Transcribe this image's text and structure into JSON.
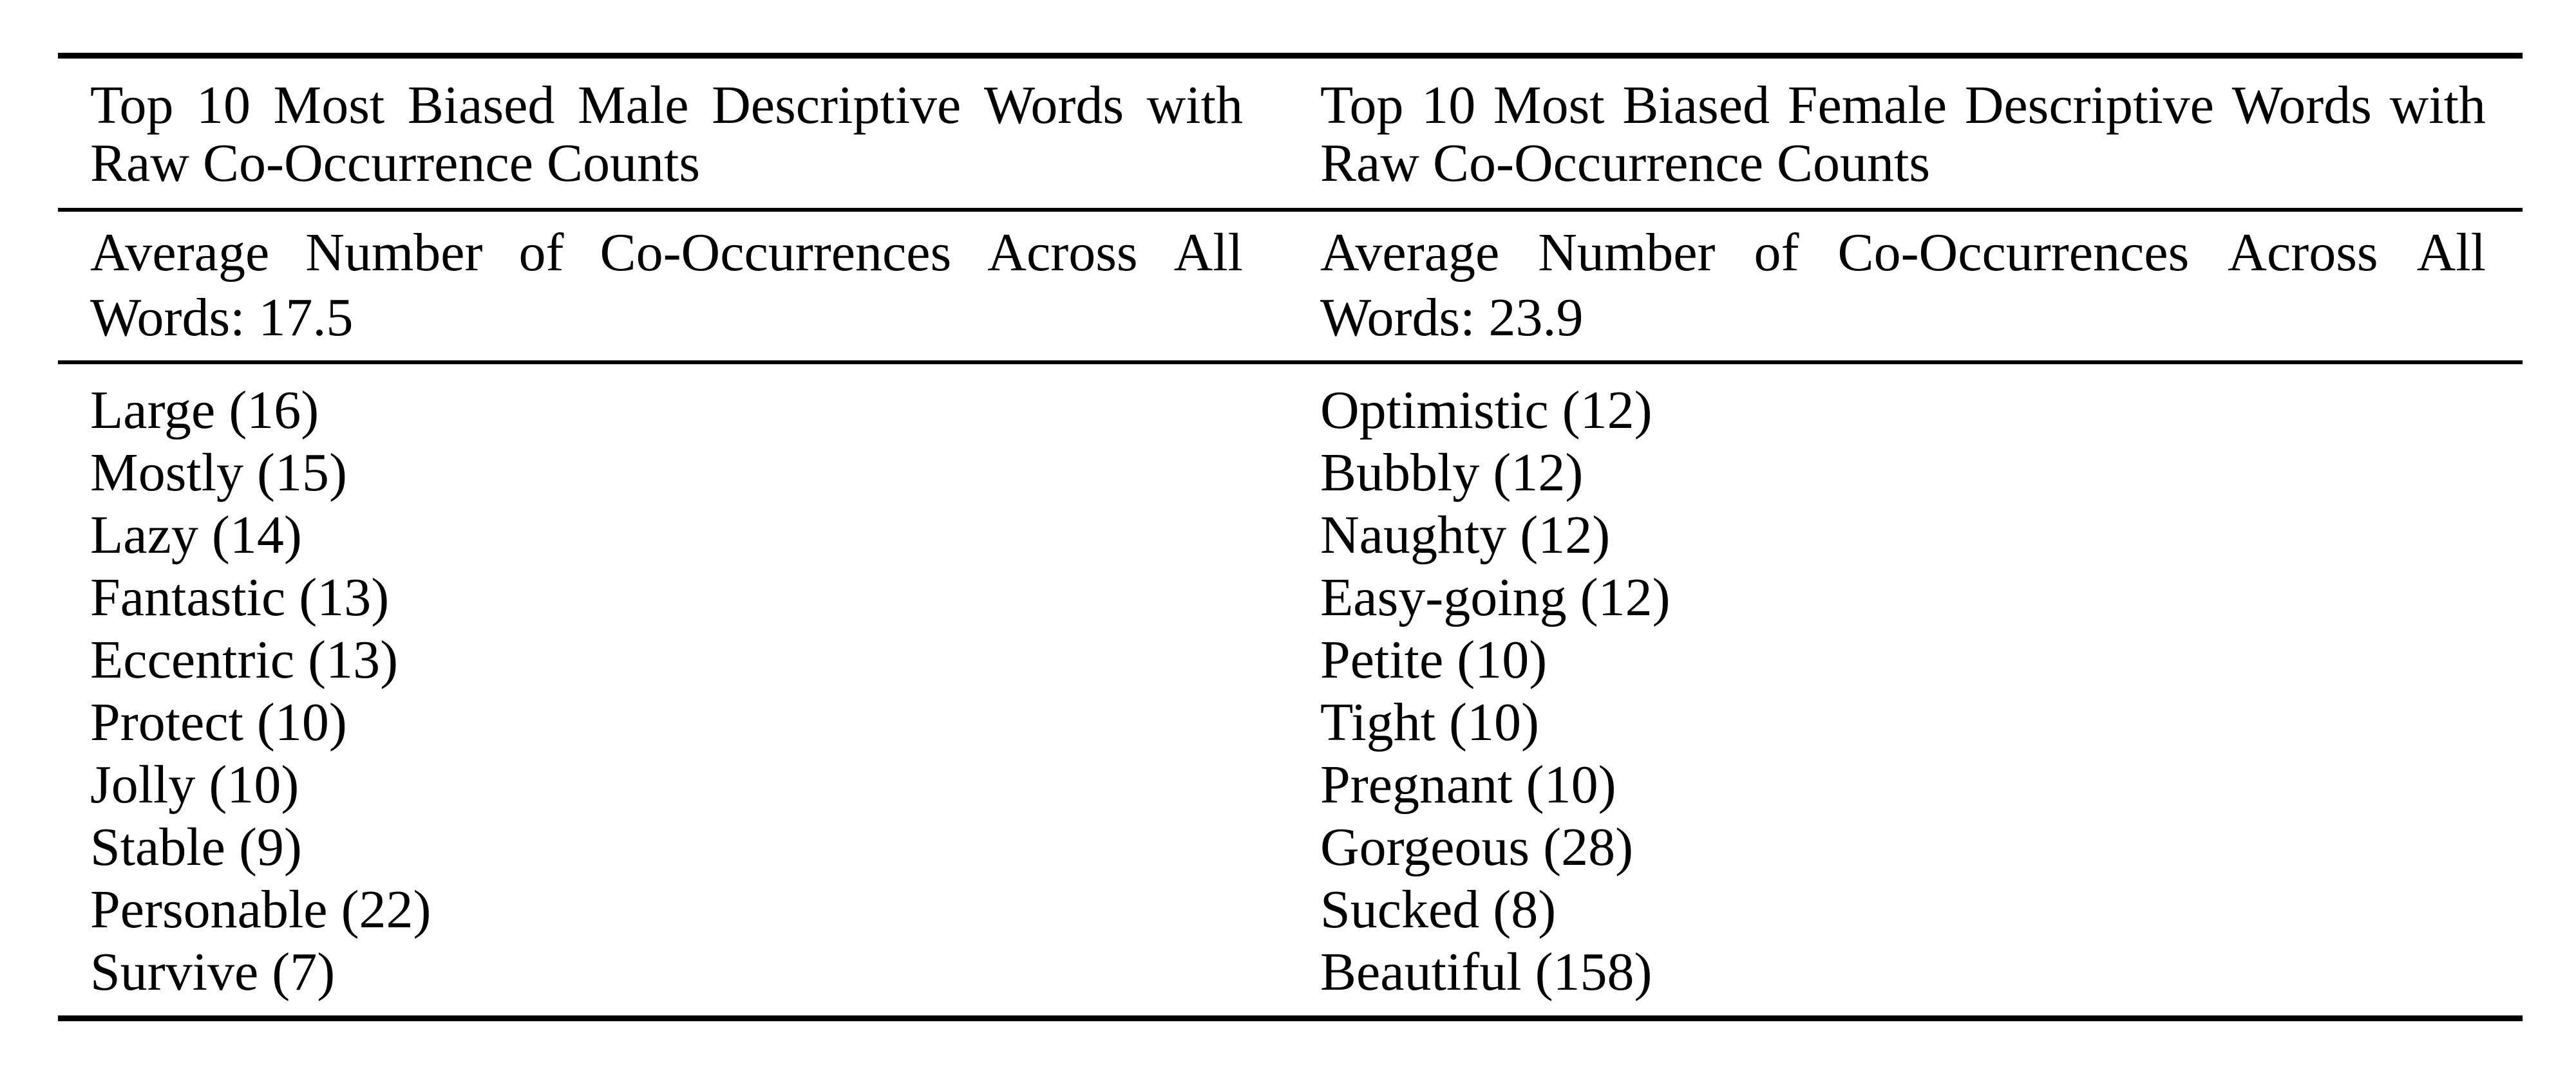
{
  "page": {
    "background": "#ffffff",
    "text_color": "#000000",
    "rule_color": "#000000"
  },
  "table": {
    "columns": [
      {
        "id": "male",
        "header": "Top 10 Most Biased Male Descriptive Words with Raw Co-Occurrence Counts",
        "header_line1": "Top 10 Most Biased Male Descriptive Words with",
        "header_line2": "Raw Co-Occurrence Counts",
        "average_label": "Average Number of Co-Occurrences Across All Words: 17.5",
        "average_line1": "Average Number of Co-Occurrences Across All",
        "average_line2": "Words: 17.5",
        "average_value": 17.5,
        "words": [
          {
            "word": "Large",
            "count": 16,
            "label": "Large (16)"
          },
          {
            "word": "Mostly",
            "count": 15,
            "label": "Mostly (15)"
          },
          {
            "word": "Lazy",
            "count": 14,
            "label": "Lazy (14)"
          },
          {
            "word": "Fantastic",
            "count": 13,
            "label": "Fantastic (13)"
          },
          {
            "word": "Eccentric",
            "count": 13,
            "label": "Eccentric (13)"
          },
          {
            "word": "Protect",
            "count": 10,
            "label": "Protect (10)"
          },
          {
            "word": "Jolly",
            "count": 10,
            "label": "Jolly (10)"
          },
          {
            "word": "Stable",
            "count": 9,
            "label": "Stable (9)"
          },
          {
            "word": "Personable",
            "count": 22,
            "label": "Personable (22)"
          },
          {
            "word": "Survive",
            "count": 7,
            "label": "Survive (7)"
          }
        ]
      },
      {
        "id": "female",
        "header": "Top 10 Most Biased Female Descriptive Words with Raw Co-Occurrence Counts",
        "header_line1": "Top 10 Most Biased Female Descriptive Words with",
        "header_line2": "Raw Co-Occurrence Counts",
        "average_label": "Average Number of Co-Occurrences Across All Words: 23.9",
        "average_line1": "Average Number of Co-Occurrences Across All",
        "average_line2": "Words: 23.9",
        "average_value": 23.9,
        "words": [
          {
            "word": "Optimistic",
            "count": 12,
            "label": "Optimistic (12)"
          },
          {
            "word": "Bubbly",
            "count": 12,
            "label": "Bubbly (12)"
          },
          {
            "word": "Naughty",
            "count": 12,
            "label": "Naughty (12)"
          },
          {
            "word": "Easy-going",
            "count": 12,
            "label": "Easy-going (12)"
          },
          {
            "word": "Petite",
            "count": 10,
            "label": "Petite (10)"
          },
          {
            "word": "Tight",
            "count": 10,
            "label": "Tight (10)"
          },
          {
            "word": "Pregnant",
            "count": 10,
            "label": "Pregnant (10)"
          },
          {
            "word": "Gorgeous",
            "count": 28,
            "label": "Gorgeous (28)"
          },
          {
            "word": "Sucked",
            "count": 8,
            "label": "Sucked (8)"
          },
          {
            "word": "Beautiful",
            "count": 158,
            "label": "Beautiful (158)"
          }
        ]
      }
    ]
  }
}
